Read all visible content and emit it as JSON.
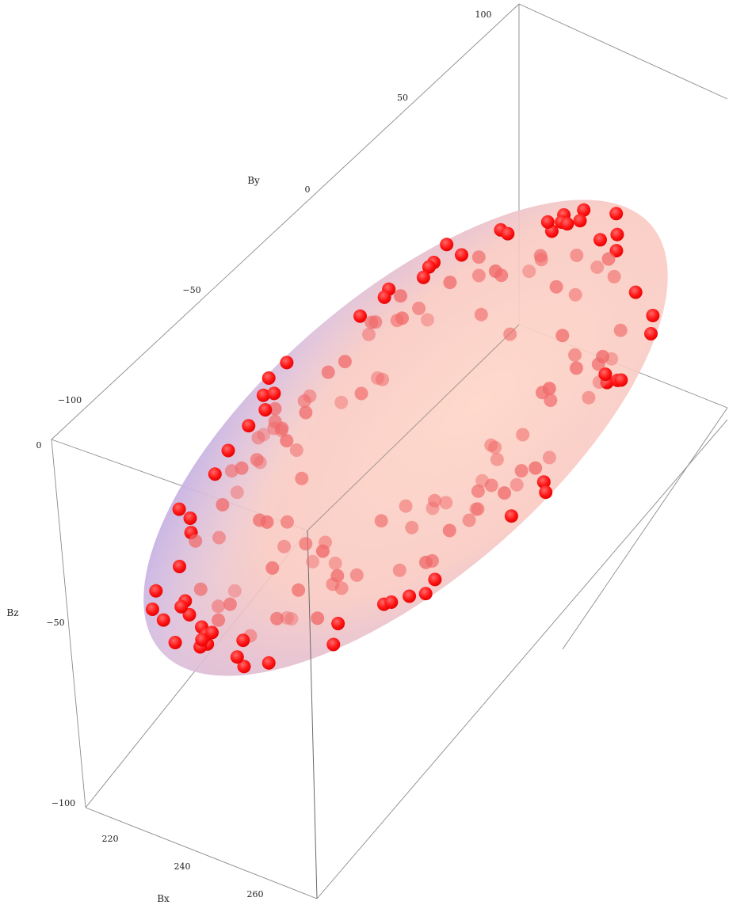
{
  "chart_data": {
    "type": "scatter",
    "subtype": "3d-scatter-with-fitted-ellipsoid",
    "title": "",
    "axes": {
      "x": {
        "label": "Bx",
        "ticks": [
          "220",
          "240",
          "260"
        ],
        "range": [
          210,
          270
        ]
      },
      "y": {
        "label": "By",
        "ticks": [
          "-100",
          "-50",
          "0",
          "50",
          "100"
        ],
        "range": [
          -120,
          110
        ]
      },
      "z": {
        "label": "Bz",
        "ticks": [
          "0",
          "-50",
          "-100"
        ],
        "range": [
          -110,
          5
        ]
      }
    },
    "series": [
      {
        "marker": "sphere",
        "color": "#ff0000",
        "count": 180
      },
      {
        "marker": "ellipsoid-surface",
        "color": "#f6b9ad"
      }
    ],
    "grid": false,
    "legend": "none"
  }
}
